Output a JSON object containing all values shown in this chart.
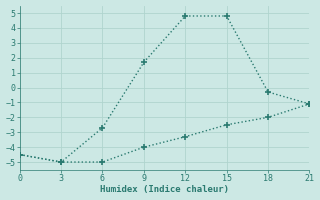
{
  "line1_x": [
    0,
    3,
    6,
    9,
    12,
    15,
    18,
    21
  ],
  "line1_y": [
    -4.5,
    -5.0,
    -2.7,
    1.7,
    4.8,
    4.8,
    -0.3,
    -1.1
  ],
  "line2_x": [
    0,
    3,
    6,
    9,
    12,
    15,
    18,
    21
  ],
  "line2_y": [
    -4.5,
    -5.0,
    -5.0,
    -4.0,
    -3.3,
    -2.5,
    -2.0,
    -1.1
  ],
  "line_color": "#2a7a70",
  "bg_color": "#cce8e4",
  "grid_color": "#b0d4ce",
  "xlabel": "Humidex (Indice chaleur)",
  "xlim": [
    0,
    21
  ],
  "ylim": [
    -5.5,
    5.5
  ],
  "xticks": [
    0,
    3,
    6,
    9,
    12,
    15,
    18,
    21
  ],
  "yticks": [
    -5,
    -4,
    -3,
    -2,
    -1,
    0,
    1,
    2,
    3,
    4,
    5
  ],
  "marker": "+",
  "marker_size": 4,
  "line_width": 1.0
}
